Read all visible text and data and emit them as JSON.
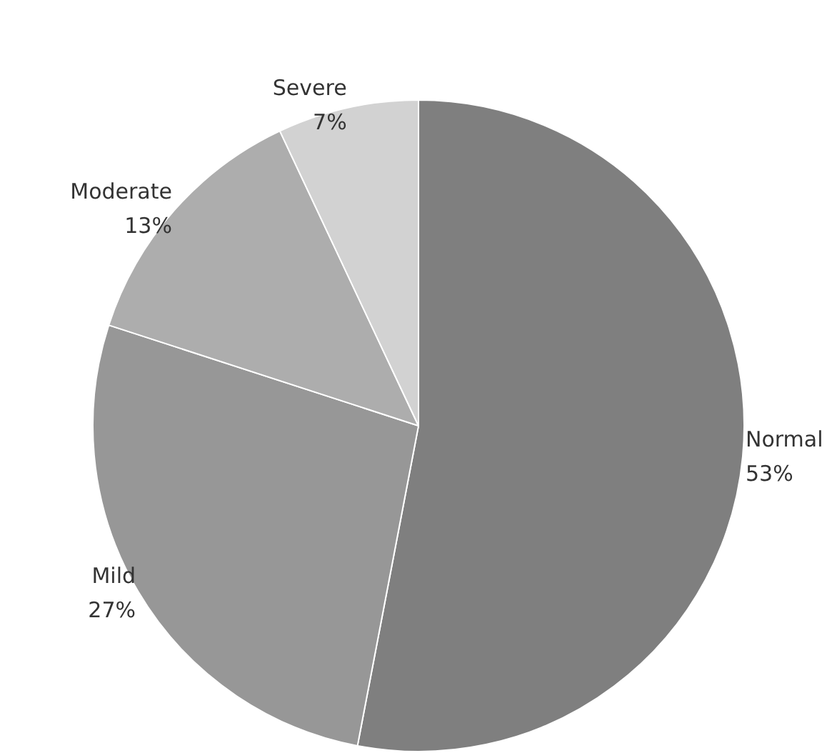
{
  "chart_data": {
    "type": "pie",
    "categories": [
      "Normal",
      "Mild",
      "Moderate",
      "Severe"
    ],
    "values": [
      53,
      27,
      13,
      7
    ],
    "colors": [
      "#7f7f7f",
      "#979797",
      "#adadad",
      "#d2d2d2"
    ],
    "value_labels": [
      "53%",
      "27%",
      "13%",
      "7%"
    ],
    "legend": false
  }
}
